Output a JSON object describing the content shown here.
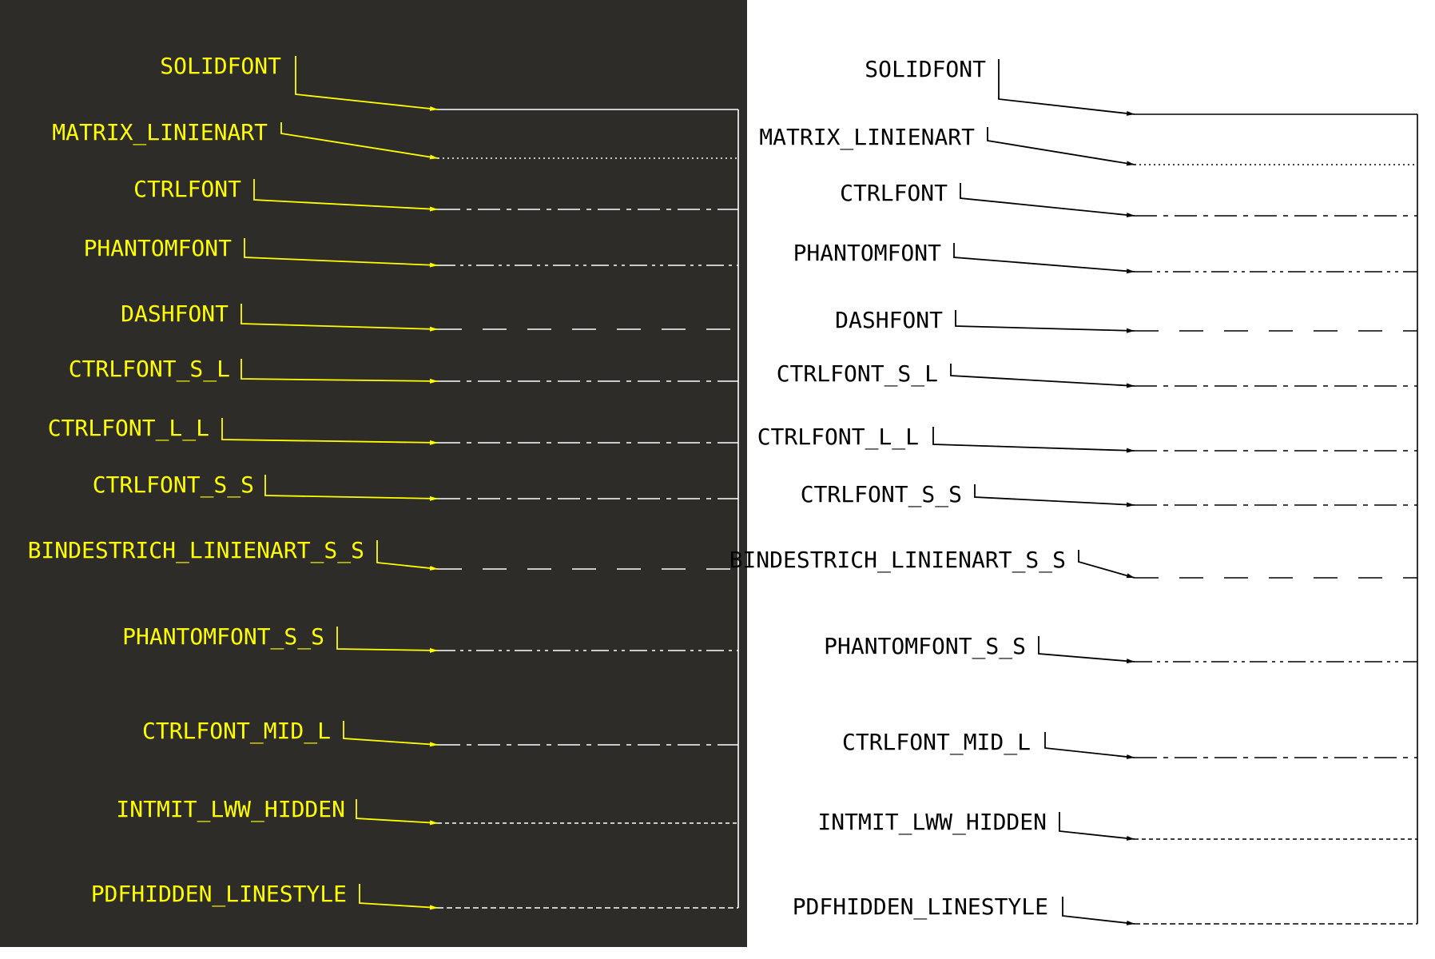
{
  "left_panel": {
    "background": "#2e2c29",
    "label_color": "#ffff00",
    "line_color": "#ffff00",
    "pattern_color": "#ffffff"
  },
  "right_panel": {
    "background": "#ffffff",
    "label_color": "#000000",
    "line_color": "#000000",
    "pattern_color": "#000000"
  },
  "linestyles": [
    {
      "name": "SOLIDFONT",
      "pattern": "solid"
    },
    {
      "name": "MATRIX_LINIENART",
      "pattern": "dotted"
    },
    {
      "name": "CTRLFONT",
      "pattern": "center"
    },
    {
      "name": "PHANTOMFONT",
      "pattern": "phantom"
    },
    {
      "name": "DASHFONT",
      "pattern": "dash"
    },
    {
      "name": "CTRLFONT_S_L",
      "pattern": "center"
    },
    {
      "name": "CTRLFONT_L_L",
      "pattern": "center"
    },
    {
      "name": "CTRLFONT_S_S",
      "pattern": "center"
    },
    {
      "name": "BINDESTRICH_LINIENART_S_S",
      "pattern": "dash"
    },
    {
      "name": "PHANTOMFONT_S_S",
      "pattern": "phantom"
    },
    {
      "name": "CTRLFONT_MID_L",
      "pattern": "center"
    },
    {
      "name": "INTMIT_LWW_HIDDEN",
      "pattern": "fine-dash"
    },
    {
      "name": "PDFHIDDEN_LINESTYLE",
      "pattern": "hidden"
    }
  ]
}
